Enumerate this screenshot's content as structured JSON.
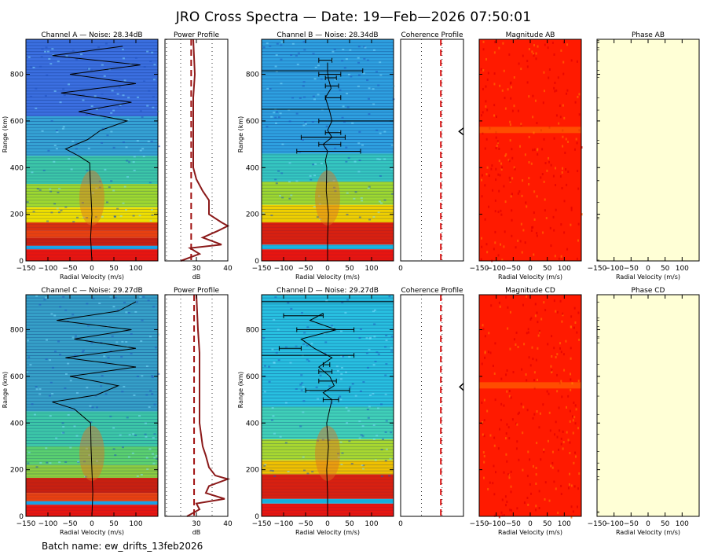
{
  "title": "JRO Cross Spectra — Date: 19—Feb—2026 07:50:01",
  "batch": "Batch name: ew_drifts_13feb2026",
  "colors": {
    "profile_line": "#8b1a1a",
    "noise_dash": "#a01010",
    "coherence_dash": "#d81010",
    "magnitude_fill": "#ff1a00",
    "phase_fill": "#ffffd6"
  },
  "chart_data": [
    {
      "type": "heatmap",
      "name": "channel-a",
      "title": "Channel A — Noise: 28.34dB",
      "xlabel": "Radial Velocity (m/s)",
      "ylabel": "Range (km)",
      "xlim": [
        -150,
        150
      ],
      "ylim": [
        0,
        950
      ],
      "x_ticks": [
        -150,
        -100,
        -50,
        0,
        50,
        100
      ],
      "y_ticks": [
        0,
        200,
        400,
        600,
        800
      ],
      "bands": [
        {
          "from": 0,
          "to": 50,
          "color": "#e81510"
        },
        {
          "from": 50,
          "to": 65,
          "color": "#1aa3e8"
        },
        {
          "from": 65,
          "to": 100,
          "color": "#c82010"
        },
        {
          "from": 100,
          "to": 130,
          "color": "#e84010"
        },
        {
          "from": 130,
          "to": 165,
          "color": "#d83010"
        },
        {
          "from": 165,
          "to": 230,
          "color": "#f0e000"
        },
        {
          "from": 230,
          "to": 330,
          "color": "#9ed830"
        },
        {
          "from": 330,
          "to": 450,
          "color": "#3cc6a8"
        },
        {
          "from": 450,
          "to": 620,
          "color": "#35a2d4"
        },
        {
          "from": 620,
          "to": 950,
          "color": "#3b6fe0"
        }
      ],
      "doppler": [
        [
          0,
          0
        ],
        [
          100,
          -3
        ],
        [
          200,
          0
        ],
        [
          280,
          -2
        ],
        [
          360,
          -4
        ],
        [
          420,
          -5
        ],
        [
          450,
          -30
        ],
        [
          480,
          -60
        ],
        [
          520,
          -10
        ],
        [
          560,
          20
        ],
        [
          600,
          80
        ],
        [
          640,
          -30
        ],
        [
          680,
          90
        ],
        [
          720,
          -70
        ],
        [
          760,
          100
        ],
        [
          800,
          -50
        ],
        [
          840,
          110
        ],
        [
          880,
          -90
        ],
        [
          920,
          70
        ]
      ]
    },
    {
      "type": "line",
      "name": "power-profile-ab",
      "title": "Power Profile",
      "xlabel": "dB",
      "xlim": [
        20,
        40
      ],
      "ylim": [
        0,
        950
      ],
      "x_ticks": [
        30,
        40
      ],
      "noise_level": 28.34,
      "profile": [
        [
          0,
          25
        ],
        [
          30,
          31
        ],
        [
          55,
          28
        ],
        [
          70,
          38
        ],
        [
          100,
          32
        ],
        [
          130,
          37
        ],
        [
          150,
          40
        ],
        [
          165,
          38
        ],
        [
          200,
          34
        ],
        [
          260,
          34
        ],
        [
          300,
          32
        ],
        [
          350,
          30
        ],
        [
          400,
          29
        ],
        [
          500,
          29
        ],
        [
          600,
          29
        ],
        [
          700,
          29
        ],
        [
          800,
          29.5
        ],
        [
          950,
          29
        ]
      ]
    },
    {
      "type": "heatmap",
      "name": "channel-b",
      "title": "Channel B — Noise: 28.34dB",
      "xlabel": "Radial Velocity (m/s)",
      "ylabel": "Range (km)",
      "xlim": [
        -150,
        150
      ],
      "ylim": [
        0,
        950
      ],
      "x_ticks": [
        -150,
        -100,
        -50,
        0,
        50,
        100
      ],
      "y_ticks": [
        0,
        200,
        400,
        600,
        800
      ],
      "bands": [
        {
          "from": 0,
          "to": 50,
          "color": "#e81510"
        },
        {
          "from": 50,
          "to": 70,
          "color": "#18b4e0"
        },
        {
          "from": 70,
          "to": 165,
          "color": "#d82010"
        },
        {
          "from": 165,
          "to": 240,
          "color": "#f0d000"
        },
        {
          "from": 240,
          "to": 340,
          "color": "#9ed830"
        },
        {
          "from": 340,
          "to": 460,
          "color": "#35c6c0"
        },
        {
          "from": 460,
          "to": 950,
          "color": "#2ea0e0"
        }
      ],
      "doppler": [
        [
          0,
          0
        ],
        [
          100,
          0
        ],
        [
          200,
          2
        ],
        [
          300,
          -3
        ],
        [
          400,
          -2
        ],
        [
          430,
          -5
        ],
        [
          470,
          0
        ],
        [
          500,
          -10
        ],
        [
          530,
          10
        ],
        [
          560,
          0
        ],
        [
          600,
          10
        ],
        [
          640,
          5
        ],
        [
          700,
          -5
        ],
        [
          740,
          8
        ],
        [
          780,
          2
        ],
        [
          810,
          0
        ],
        [
          850,
          0
        ]
      ],
      "errorbars": [
        [
          470,
          -70,
          75
        ],
        [
          500,
          -20,
          30
        ],
        [
          530,
          -60,
          40
        ],
        [
          550,
          -5,
          30
        ],
        [
          600,
          -20,
          150
        ],
        [
          650,
          -150,
          150
        ],
        [
          700,
          -5,
          30
        ],
        [
          750,
          -5,
          25
        ],
        [
          785,
          -5,
          20
        ],
        [
          800,
          -20,
          30
        ],
        [
          815,
          -150,
          80
        ],
        [
          860,
          -20,
          10
        ]
      ]
    },
    {
      "type": "line",
      "name": "coherence-profile-ab",
      "title": "Coherence Profile",
      "xlabel": "",
      "xlim": [
        0,
        1
      ],
      "ylim": [
        0,
        950
      ],
      "x_ticks": [
        0
      ],
      "threshold": 0.64,
      "profile": [
        [
          540,
          1
        ],
        [
          555,
          0.93
        ],
        [
          570,
          1
        ]
      ]
    },
    {
      "type": "heatmap",
      "name": "magnitude-ab",
      "title": "Magnitude AB",
      "xlabel": "Radial Velocity (m/s)",
      "xlim": [
        -150,
        150
      ],
      "ylim": [
        0,
        950
      ],
      "x_ticks": [
        -150,
        -100,
        -50,
        0,
        50,
        100
      ]
    },
    {
      "type": "heatmap",
      "name": "phase-ab",
      "title": "Phase AB",
      "xlabel": "Radial Velocity (m/s)",
      "xlim": [
        -150,
        150
      ],
      "ylim": [
        0,
        950
      ],
      "x_ticks": [
        -150,
        -100,
        -50,
        0,
        50,
        100
      ]
    },
    {
      "type": "heatmap",
      "name": "channel-c",
      "title": "Channel C — Noise: 29.27dB",
      "xlabel": "Radial Velocity (m/s)",
      "ylabel": "Range (km)",
      "xlim": [
        -150,
        150
      ],
      "ylim": [
        0,
        950
      ],
      "x_ticks": [
        -150,
        -100,
        -50,
        0,
        50,
        100
      ],
      "y_ticks": [
        0,
        200,
        400,
        600,
        800
      ],
      "bands": [
        {
          "from": 0,
          "to": 50,
          "color": "#e81510"
        },
        {
          "from": 50,
          "to": 65,
          "color": "#1aa3e8"
        },
        {
          "from": 65,
          "to": 100,
          "color": "#e84010"
        },
        {
          "from": 100,
          "to": 165,
          "color": "#c82010"
        },
        {
          "from": 165,
          "to": 220,
          "color": "#8ccc40"
        },
        {
          "from": 220,
          "to": 300,
          "color": "#5ad070"
        },
        {
          "from": 300,
          "to": 450,
          "color": "#3cc6a8"
        },
        {
          "from": 450,
          "to": 950,
          "color": "#36a0c8"
        }
      ],
      "doppler": [
        [
          0,
          0
        ],
        [
          100,
          2
        ],
        [
          200,
          0
        ],
        [
          300,
          -2
        ],
        [
          400,
          -3
        ],
        [
          460,
          -40
        ],
        [
          490,
          -90
        ],
        [
          520,
          10
        ],
        [
          560,
          60
        ],
        [
          600,
          -50
        ],
        [
          640,
          100
        ],
        [
          680,
          -60
        ],
        [
          720,
          100
        ],
        [
          760,
          -40
        ],
        [
          800,
          90
        ],
        [
          840,
          -80
        ],
        [
          880,
          60
        ],
        [
          920,
          100
        ]
      ]
    },
    {
      "type": "line",
      "name": "power-profile-cd",
      "title": "Power Profile",
      "xlabel": "dB",
      "xlim": [
        20,
        40
      ],
      "ylim": [
        0,
        950
      ],
      "x_ticks": [
        30,
        40
      ],
      "noise_level": 29.27,
      "profile": [
        [
          0,
          27
        ],
        [
          30,
          31
        ],
        [
          55,
          30
        ],
        [
          75,
          39
        ],
        [
          100,
          33
        ],
        [
          130,
          34
        ],
        [
          160,
          42
        ],
        [
          175,
          36
        ],
        [
          210,
          34
        ],
        [
          260,
          33
        ],
        [
          300,
          32
        ],
        [
          400,
          31
        ],
        [
          500,
          31
        ],
        [
          600,
          31
        ],
        [
          700,
          31
        ],
        [
          800,
          30.5
        ],
        [
          950,
          30
        ]
      ]
    },
    {
      "type": "heatmap",
      "name": "channel-d",
      "title": "Channel D — Noise: 29.27dB",
      "xlabel": "Radial Velocity (m/s)",
      "ylabel": "Range (km)",
      "xlim": [
        -150,
        150
      ],
      "ylim": [
        0,
        950
      ],
      "x_ticks": [
        -150,
        -100,
        -50,
        0,
        50,
        100
      ],
      "y_ticks": [
        0,
        200,
        400,
        600,
        800
      ],
      "bands": [
        {
          "from": 0,
          "to": 55,
          "color": "#e81510"
        },
        {
          "from": 55,
          "to": 75,
          "color": "#18b4e0"
        },
        {
          "from": 75,
          "to": 180,
          "color": "#d82010"
        },
        {
          "from": 180,
          "to": 240,
          "color": "#f0c000"
        },
        {
          "from": 240,
          "to": 330,
          "color": "#a8d830"
        },
        {
          "from": 330,
          "to": 470,
          "color": "#40d0b8"
        },
        {
          "from": 470,
          "to": 950,
          "color": "#28c0e0"
        }
      ],
      "doppler": [
        [
          0,
          0
        ],
        [
          100,
          0
        ],
        [
          200,
          -2
        ],
        [
          300,
          2
        ],
        [
          400,
          -2
        ],
        [
          460,
          5
        ],
        [
          500,
          10
        ],
        [
          530,
          -10
        ],
        [
          560,
          15
        ],
        [
          600,
          5
        ],
        [
          640,
          -20
        ],
        [
          680,
          10
        ],
        [
          720,
          -30
        ],
        [
          760,
          -60
        ],
        [
          800,
          20
        ],
        [
          840,
          -40
        ],
        [
          870,
          -10
        ]
      ],
      "errorbars": [
        [
          500,
          -10,
          25
        ],
        [
          540,
          -50,
          50
        ],
        [
          580,
          -20,
          20
        ],
        [
          620,
          -20,
          10
        ],
        [
          650,
          -10,
          5
        ],
        [
          690,
          -150,
          60
        ],
        [
          720,
          -110,
          -60
        ],
        [
          800,
          -70,
          60
        ],
        [
          860,
          -100,
          -10
        ],
        [
          920,
          -150,
          150
        ]
      ]
    },
    {
      "type": "line",
      "name": "coherence-profile-cd",
      "title": "Coherence Profile",
      "xlabel": "",
      "xlim": [
        0,
        1
      ],
      "ylim": [
        0,
        950
      ],
      "x_ticks": [
        0
      ],
      "threshold": 0.64,
      "profile": [
        [
          540,
          1
        ],
        [
          555,
          0.94
        ],
        [
          570,
          1
        ]
      ]
    },
    {
      "type": "heatmap",
      "name": "magnitude-cd",
      "title": "Magnitude CD",
      "xlabel": "Radial Velocity (m/s)",
      "xlim": [
        -150,
        150
      ],
      "ylim": [
        0,
        950
      ],
      "x_ticks": [
        -150,
        -100,
        -50,
        0,
        50,
        100
      ]
    },
    {
      "type": "heatmap",
      "name": "phase-cd",
      "title": "Phase CD",
      "xlabel": "Radial Velocity (m/s)",
      "xlim": [
        -150,
        150
      ],
      "ylim": [
        0,
        950
      ],
      "x_ticks": [
        -150,
        -100,
        -50,
        0,
        50,
        100
      ]
    }
  ]
}
